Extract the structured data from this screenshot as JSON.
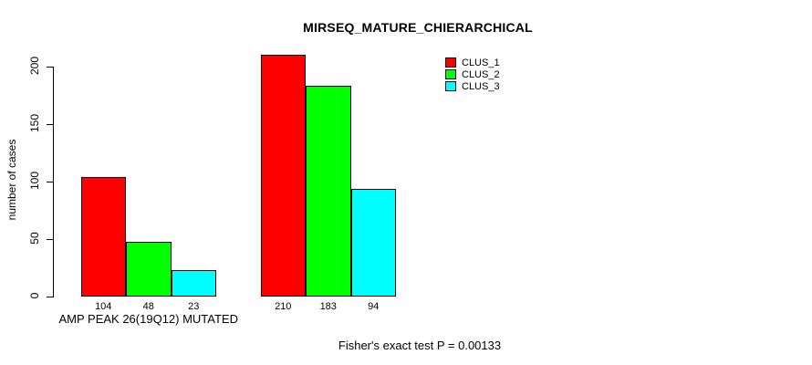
{
  "chart_data": {
    "type": "bar",
    "title": "MIRSEQ_MATURE_CHIERARCHICAL",
    "ylabel": "number of cases",
    "xlabel": "",
    "ylim": [
      0,
      200
    ],
    "yticks": [
      0,
      50,
      100,
      150,
      200
    ],
    "grid": false,
    "legend_position": "top-right-inside",
    "bar_value_labels": true,
    "categories": [
      "AMP PEAK 26(19Q12) MUTATED",
      ""
    ],
    "series": [
      {
        "name": "CLUS_1",
        "color": "#FF0000",
        "values": [
          104,
          210
        ]
      },
      {
        "name": "CLUS_2",
        "color": "#00FF00",
        "values": [
          48,
          183
        ]
      },
      {
        "name": "CLUS_3",
        "color": "#00FFFF",
        "values": [
          23,
          94
        ]
      }
    ],
    "annotation": "Fisher's exact test P = 0.00133"
  }
}
